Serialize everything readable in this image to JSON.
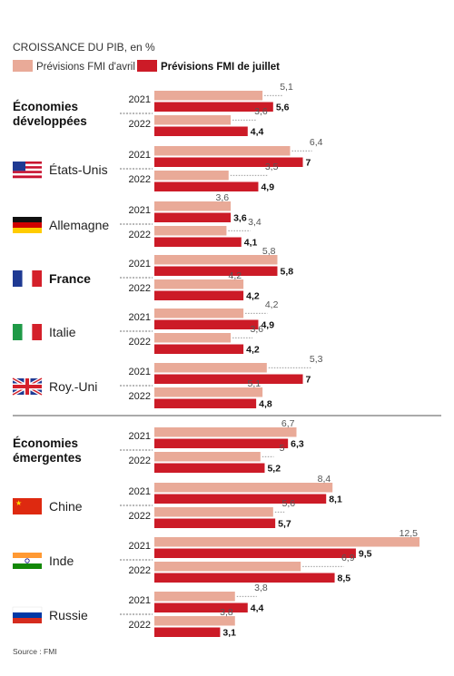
{
  "chart_data": {
    "type": "bar",
    "title": "CROISSANCE DU PIB, en %",
    "legend": [
      {
        "name": "Prévisions FMI d'avril",
        "color": "#e9aa98"
      },
      {
        "name": "Prévisions FMI de juillet",
        "color": "#cc1b27"
      }
    ],
    "groups": [
      {
        "label": "Économies développées",
        "rows": [
          {
            "name": "Économies développées",
            "flag": "",
            "bold": false,
            "years": [
              {
                "year": "2021",
                "april": 5.1,
                "july": 5.6,
                "april_label": "5,1",
                "july_label": "5,6"
              },
              {
                "year": "2022",
                "april": 3.6,
                "july": 4.4,
                "april_label": "3,6",
                "july_label": "4,4"
              }
            ]
          },
          {
            "name": "États-Unis",
            "flag": "us-flag-icon",
            "bold": false,
            "years": [
              {
                "year": "2021",
                "april": 6.4,
                "july": 7.0,
                "april_label": "6,4",
                "july_label": "7"
              },
              {
                "year": "2022",
                "april": 3.5,
                "july": 4.9,
                "april_label": "3,5",
                "july_label": "4,9"
              }
            ]
          },
          {
            "name": "Allemagne",
            "flag": "germany-flag-icon",
            "bold": false,
            "years": [
              {
                "year": "2021",
                "april": 3.6,
                "july": 3.6,
                "april_label": "3,6",
                "july_label": "3,6"
              },
              {
                "year": "2022",
                "april": 3.4,
                "july": 4.1,
                "april_label": "3,4",
                "july_label": "4,1"
              }
            ]
          },
          {
            "name": "France",
            "flag": "france-flag-icon",
            "bold": true,
            "years": [
              {
                "year": "2021",
                "april": 5.8,
                "july": 5.8,
                "april_label": "5,8",
                "july_label": "5,8"
              },
              {
                "year": "2022",
                "april": 4.2,
                "july": 4.2,
                "april_label": "4,2",
                "july_label": "4,2"
              }
            ]
          },
          {
            "name": "Italie",
            "flag": "italy-flag-icon",
            "bold": false,
            "years": [
              {
                "year": "2021",
                "april": 4.2,
                "july": 4.9,
                "april_label": "4,2",
                "july_label": "4,9"
              },
              {
                "year": "2022",
                "april": 3.6,
                "july": 4.2,
                "april_label": "3,6",
                "july_label": "4,2"
              }
            ]
          },
          {
            "name": "Roy.-Uni",
            "flag": "uk-flag-icon",
            "bold": false,
            "years": [
              {
                "year": "2021",
                "april": 5.3,
                "july": 7.0,
                "april_label": "5,3",
                "july_label": "7"
              },
              {
                "year": "2022",
                "april": 5.1,
                "july": 4.8,
                "april_label": "5,1",
                "july_label": "4,8"
              }
            ]
          }
        ]
      },
      {
        "label": "Économies émergentes",
        "rows": [
          {
            "name": "Économies émergentes",
            "flag": "",
            "bold": false,
            "years": [
              {
                "year": "2021",
                "april": 6.7,
                "july": 6.3,
                "april_label": "6,7",
                "july_label": "6,3"
              },
              {
                "year": "2022",
                "april": 5.0,
                "july": 5.2,
                "april_label": "5",
                "july_label": "5,2"
              }
            ]
          },
          {
            "name": "Chine",
            "flag": "china-flag-icon",
            "bold": false,
            "years": [
              {
                "year": "2021",
                "april": 8.4,
                "july": 8.1,
                "april_label": "8,4",
                "july_label": "8,1"
              },
              {
                "year": "2022",
                "april": 5.6,
                "july": 5.7,
                "april_label": "5,6",
                "july_label": "5,7"
              }
            ]
          },
          {
            "name": "Inde",
            "flag": "india-flag-icon",
            "bold": false,
            "years": [
              {
                "year": "2021",
                "april": 12.5,
                "july": 9.5,
                "april_label": "12,5",
                "july_label": "9,5"
              },
              {
                "year": "2022",
                "april": 6.9,
                "july": 8.5,
                "april_label": "6,9",
                "july_label": "8,5"
              }
            ]
          },
          {
            "name": "Russie",
            "flag": "russia-flag-icon",
            "bold": false,
            "years": [
              {
                "year": "2021",
                "april": 3.8,
                "july": 4.4,
                "april_label": "3,8",
                "july_label": "4,4"
              },
              {
                "year": "2022",
                "april": 3.8,
                "july": 3.1,
                "april_label": "3,8",
                "july_label": "3,1"
              }
            ]
          }
        ]
      }
    ],
    "source": "Source : FMI",
    "xlim": [
      0,
      12.5
    ]
  }
}
